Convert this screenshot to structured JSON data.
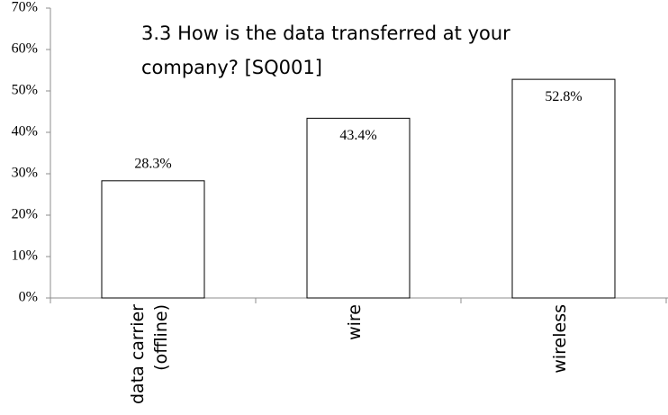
{
  "chart_data": {
    "type": "bar",
    "title": "3.3 How is the data transferred at your company? [SQ001]",
    "categories": [
      "data carrier (offline)",
      "wire",
      "wireless"
    ],
    "values": [
      28.3,
      43.4,
      52.8
    ],
    "value_labels": [
      "28.3%",
      "43.4%",
      "52.8%"
    ],
    "color": "#ffffff",
    "ylim": [
      0,
      70
    ],
    "yticks": [
      {
        "value": 0,
        "label": "0%"
      },
      {
        "value": 10,
        "label": "10%"
      },
      {
        "value": 20,
        "label": "20%"
      },
      {
        "value": 30,
        "label": "30%"
      },
      {
        "value": 40,
        "label": "40%"
      },
      {
        "value": 50,
        "label": "50%"
      },
      {
        "value": 60,
        "label": "60%"
      },
      {
        "value": 70,
        "label": "70%"
      }
    ],
    "grid": false
  }
}
